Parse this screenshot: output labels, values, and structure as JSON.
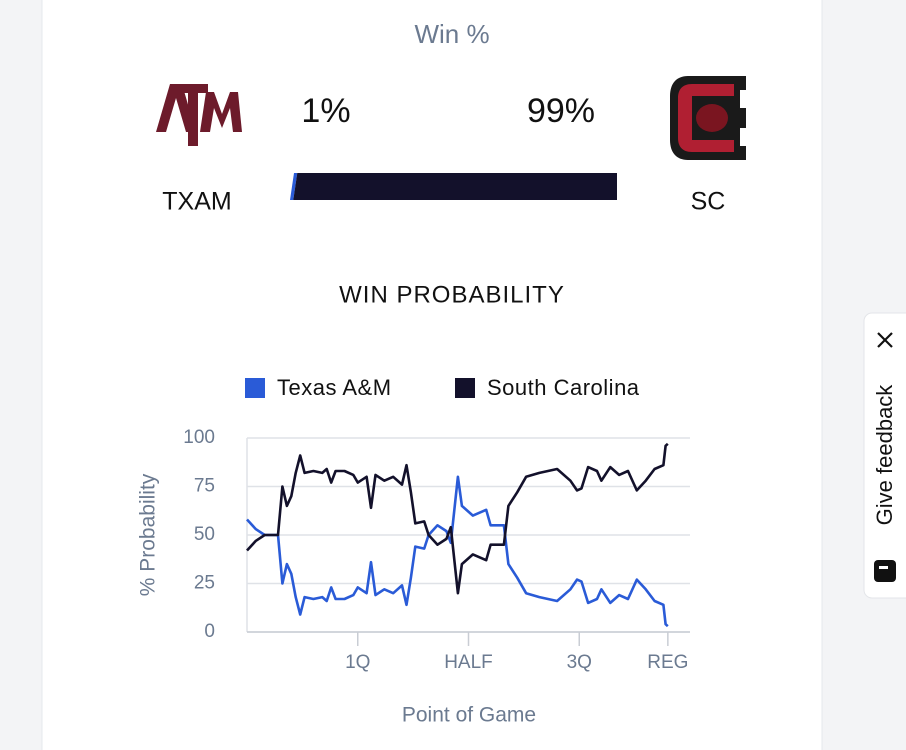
{
  "win_pct": {
    "title": "Win %",
    "teams": [
      {
        "abbr": "TXAM",
        "pct": 1,
        "pct_label": "1%",
        "color": "#2a5bd7"
      },
      {
        "abbr": "SC",
        "pct": 99,
        "pct_label": "99%",
        "color": "#13112b"
      }
    ]
  },
  "chart_data": {
    "type": "line",
    "title": "WIN PROBABILITY",
    "xlabel": "Point of Game",
    "ylabel": "% Probability",
    "x": [
      0,
      2,
      4,
      6,
      7,
      8,
      9,
      10,
      11,
      12,
      13,
      15,
      17,
      18,
      19,
      20,
      22,
      24,
      25,
      27,
      28,
      29,
      31,
      33,
      35,
      36,
      37,
      38,
      40,
      41,
      43,
      45,
      46,
      47.6,
      48.5,
      51,
      54,
      55,
      58,
      59,
      61,
      63,
      66,
      70,
      73,
      74.5,
      75.5,
      77,
      79,
      80,
      82,
      84,
      86,
      88,
      90,
      92,
      94,
      94.5,
      95
    ],
    "series": [
      {
        "name": "Texas A&M",
        "color": "#2a5bd7",
        "values": [
          58,
          53,
          50,
          50,
          50,
          25,
          35,
          30,
          18,
          9,
          18,
          17,
          18,
          16,
          23,
          17,
          17,
          19,
          23,
          20,
          36,
          19,
          22,
          20,
          24,
          14,
          28,
          44,
          43,
          50,
          55,
          52,
          46,
          80,
          65,
          60,
          63,
          55,
          55,
          35,
          28,
          20,
          18,
          16,
          22,
          27,
          26,
          15,
          17,
          22,
          15,
          19,
          17,
          27,
          22,
          16,
          14,
          4,
          3
        ]
      },
      {
        "name": "South Carolina",
        "color": "#13112b",
        "values": [
          42,
          47,
          50,
          50,
          50,
          75,
          65,
          70,
          82,
          91,
          82,
          83,
          82,
          84,
          77,
          83,
          83,
          81,
          77,
          80,
          64,
          81,
          78,
          80,
          76,
          86,
          72,
          56,
          57,
          50,
          45,
          48,
          54,
          20,
          35,
          40,
          37,
          45,
          45,
          65,
          72,
          80,
          82,
          84,
          78,
          73,
          74,
          85,
          83,
          78,
          85,
          81,
          83,
          73,
          78,
          84,
          86,
          96,
          97
        ]
      }
    ],
    "xlim": [
      0,
      100
    ],
    "xticks": [
      {
        "value": 25,
        "label": "1Q"
      },
      {
        "value": 50,
        "label": "HALF"
      },
      {
        "value": 75,
        "label": "3Q"
      },
      {
        "value": 95,
        "label": "REG"
      }
    ],
    "ylim": [
      0,
      100
    ],
    "yticks": [
      0,
      25,
      50,
      75,
      100
    ],
    "grid": true
  },
  "feedback": {
    "label": "Give feedback"
  }
}
